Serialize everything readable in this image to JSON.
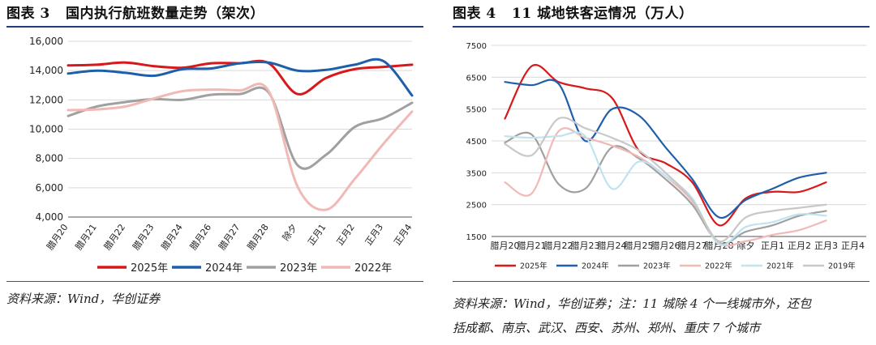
{
  "left": {
    "figure_label": "图表 3",
    "figure_title": "国内执行航班数量走势（架次）",
    "source": "资料来源：Wind，华创证券",
    "colors": {
      "2025年": "#d7191c",
      "2024年": "#1f5faa",
      "2023年": "#a0a0a0",
      "2022年": "#f0b9b5",
      "grid": "#d9d9d9"
    }
  },
  "right": {
    "figure_label": "图表 4",
    "figure_title": "11 城地铁客运情况（万人）",
    "source_line1": "资料来源：Wind，华创证券；注：11 城除 4 个一线城市外，还包",
    "source_line2": "括成都、南京、武汉、西安、苏州、郑州、重庆 7 个城市",
    "colors": {
      "2025年": "#d7191c",
      "2024年": "#1f5faa",
      "2023年": "#a0a0a0",
      "2022年": "#f0b9b5",
      "2021年": "#bfe3ef",
      "2019年": "#c8c8c8",
      "grid": "#d9d9d9"
    }
  },
  "chart_data": [
    {
      "type": "line",
      "title": "国内执行航班数量走势（架次）",
      "categories": [
        "腊月20",
        "腊月21",
        "腊月22",
        "腊月23",
        "腊月24",
        "腊月26",
        "腊月27",
        "腊月28",
        "除夕",
        "正月1",
        "正月2",
        "正月3",
        "正月4"
      ],
      "yticks": [
        4000,
        6000,
        8000,
        10000,
        12000,
        14000,
        16000
      ],
      "ytick_labels": [
        "4,000",
        "6,000",
        "8,000",
        "10,000",
        "12,000",
        "14,000",
        "16,000"
      ],
      "ylim": [
        4000,
        16000
      ],
      "grid": "horizontal",
      "legend": "bottom",
      "series": [
        {
          "name": "2025年",
          "values": [
            14350,
            14400,
            14550,
            14300,
            14200,
            14500,
            14500,
            14500,
            12400,
            13500,
            14100,
            14250,
            14400
          ]
        },
        {
          "name": "2024年",
          "values": [
            13800,
            14000,
            13850,
            13650,
            14100,
            14150,
            14500,
            14550,
            14000,
            14050,
            14400,
            14650,
            12300
          ]
        },
        {
          "name": "2023年",
          "values": [
            10900,
            11550,
            11850,
            12050,
            12000,
            12350,
            12400,
            12500,
            7550,
            8250,
            10150,
            10750,
            11800
          ]
        },
        {
          "name": "2022年",
          "values": [
            11300,
            11350,
            11550,
            12100,
            12600,
            12700,
            12650,
            12600,
            6100,
            4500,
            6600,
            9000,
            11200
          ]
        }
      ]
    },
    {
      "type": "line",
      "title": "11 城地铁客运情况（万人）",
      "categories": [
        "腊月20",
        "腊月21",
        "腊月22",
        "腊月23",
        "腊月24",
        "腊月25",
        "腊月26",
        "腊月27",
        "腊月28",
        "除夕",
        "正月1",
        "正月2",
        "正月3",
        "正月4"
      ],
      "yticks": [
        1500,
        2500,
        3500,
        4500,
        5500,
        6500,
        7500
      ],
      "ytick_labels": [
        "1500",
        "2500",
        "3500",
        "4500",
        "5500",
        "6500",
        "7500"
      ],
      "ylim": [
        1500,
        7500
      ],
      "grid": "horizontal",
      "legend": "bottom",
      "series": [
        {
          "name": "2025年",
          "values": [
            5200,
            6850,
            6350,
            6150,
            5850,
            4200,
            3800,
            3200,
            1850,
            2700,
            2900,
            2900,
            3200,
            null
          ]
        },
        {
          "name": "2024年",
          "values": [
            6350,
            6250,
            6300,
            4500,
            5500,
            5300,
            4300,
            3300,
            2100,
            2650,
            3000,
            3350,
            3500,
            null
          ]
        },
        {
          "name": "2023年",
          "values": [
            4450,
            4700,
            3150,
            3000,
            4300,
            3950,
            3300,
            2500,
            1300,
            1650,
            1850,
            2150,
            2300,
            null
          ]
        },
        {
          "name": "2022年",
          "values": [
            3200,
            2850,
            4800,
            4600,
            4350,
            4000,
            3400,
            2600,
            1300,
            1350,
            1550,
            1700,
            2000,
            null
          ]
        },
        {
          "name": "2021年",
          "values": [
            4650,
            4600,
            4650,
            4650,
            3000,
            3850,
            3400,
            2700,
            1250,
            1800,
            1950,
            2200,
            2150,
            null
          ]
        },
        {
          "name": "2019年",
          "values": [
            4400,
            4050,
            5200,
            4900,
            4600,
            4200,
            3500,
            2650,
            1350,
            2100,
            2300,
            2400,
            2500,
            null
          ]
        }
      ]
    }
  ]
}
